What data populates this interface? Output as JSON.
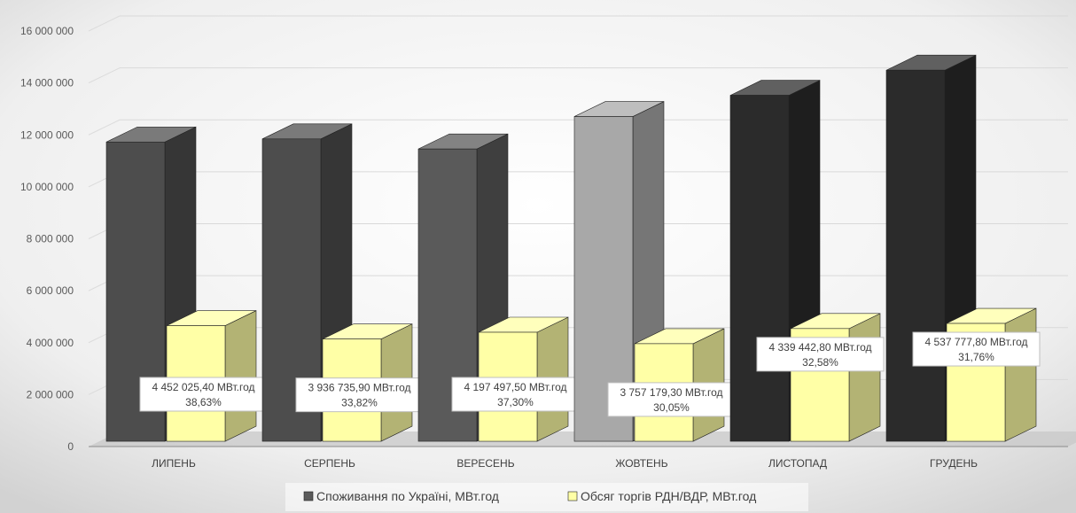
{
  "chart_data": {
    "type": "bar",
    "title": "",
    "categories": [
      "ЛИПЕНЬ",
      "СЕРПЕНЬ",
      "ВЕРЕСЕНЬ",
      "ЖОВТЕНЬ",
      "ЛИСТОПАД",
      "ГРУДЕНЬ"
    ],
    "series": [
      {
        "name": "Споживання по Україні, МВт.год",
        "values": [
          11524000,
          11641000,
          11254000,
          12503000,
          13320000,
          14288000
        ],
        "colors": [
          "#4d4d4d",
          "#4d4d4d",
          "#5a5a5a",
          "#a8a8a8",
          "#2b2b2b",
          "#2b2b2b"
        ]
      },
      {
        "name": "Обсяг торгів РДН/ВДР, МВт.год",
        "values": [
          4452025.4,
          3936735.9,
          4197497.5,
          3757179.3,
          4339442.8,
          4537777.8
        ],
        "color": "#ffffa6",
        "labels": [
          [
            "4 452 025,40 МВт.год",
            "38,63%"
          ],
          [
            "3 936 735,90 МВт.год",
            "33,82%"
          ],
          [
            "4 197 497,50 МВт.год",
            "37,30%"
          ],
          [
            "3 757 179,30 МВт.год",
            "30,05%"
          ],
          [
            "4 339 442,80 МВт.год",
            "32,58%"
          ],
          [
            "4 537 777,80 МВт.год",
            "31,76%"
          ]
        ]
      }
    ],
    "ylim": [
      0,
      16000000
    ],
    "yticks": [
      "0",
      "2 000 000",
      "4 000 000",
      "6 000 000",
      "8 000 000",
      "10 000 000",
      "12 000 000",
      "14 000 000",
      "16 000 000"
    ],
    "grid": true,
    "legend_position": "bottom"
  }
}
